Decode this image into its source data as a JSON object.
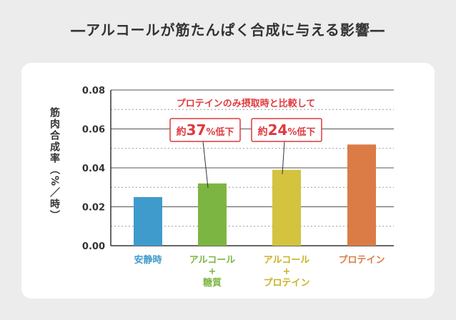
{
  "page_title": "―アルコールが筋たんぱく合成に与える影響―",
  "chart_data": {
    "type": "bar",
    "categories": [
      [
        "安静時"
      ],
      [
        "アルコール",
        "+",
        "糖質"
      ],
      [
        "アルコール",
        "+",
        "プロテイン"
      ],
      [
        "プロテイン"
      ]
    ],
    "values": [
      0.025,
      0.032,
      0.039,
      0.052
    ],
    "bar_colors": [
      "#3f9bcb",
      "#7db542",
      "#d3c33f",
      "#db7c46"
    ],
    "label_colors": [
      "#3f9bcb",
      "#7db542",
      "#c9b326",
      "#db7c46"
    ],
    "ylabel": "筋肉合成率（%／時）",
    "ylim": [
      0,
      0.08
    ],
    "yticks": [
      "0.00",
      "0.02",
      "0.04",
      "0.06",
      "0.08"
    ],
    "annotation_title": "プロテインのみ摂取時と比較して",
    "annotations": [
      {
        "prefix": "約",
        "number": "37",
        "suffix": "%低下",
        "target_index": 1
      },
      {
        "prefix": "約",
        "number": "24",
        "suffix": "%低下",
        "target_index": 2
      }
    ],
    "accent_color": "#e0393e",
    "grid": true
  }
}
